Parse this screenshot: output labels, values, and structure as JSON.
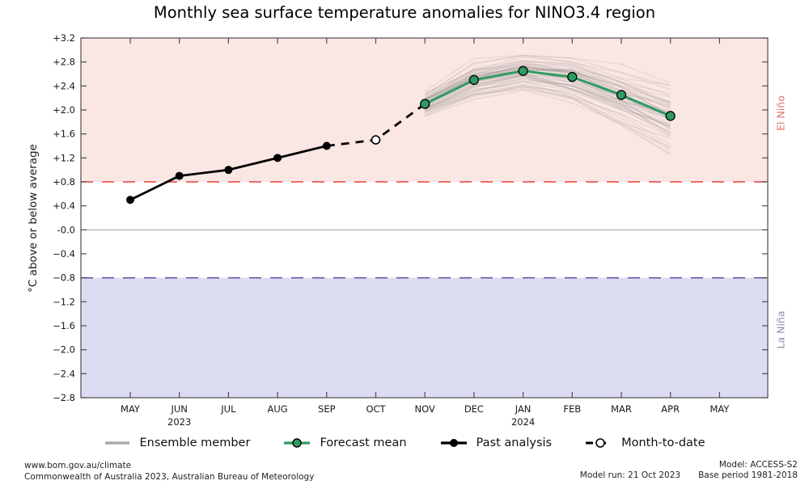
{
  "title": "Monthly sea surface temperature anomalies for NINO3.4 region",
  "ylabel": "°C above or below average",
  "right_labels": {
    "el_nino": "El Niño",
    "la_nina": "La Niña"
  },
  "legend": [
    {
      "key": "ensemble",
      "label": "Ensemble member"
    },
    {
      "key": "forecast",
      "label": "Forecast mean"
    },
    {
      "key": "past",
      "label": "Past analysis"
    },
    {
      "key": "mtd",
      "label": "Month-to-date"
    }
  ],
  "footer": {
    "left_line1": "www.bom.gov.au/climate",
    "left_line2": "Commonwealth of Australia 2023, Australian Bureau of Meteorology",
    "right_line1": "Model: ACCESS-S2",
    "right_line2a": "Model run: 21 Oct 2023",
    "right_line2b": "Base period 1981-2018"
  },
  "chart_data": {
    "type": "line",
    "x_categories": [
      "MAY",
      "JUN",
      "JUL",
      "AUG",
      "SEP",
      "OCT",
      "NOV",
      "DEC",
      "JAN",
      "FEB",
      "MAR",
      "APR",
      "MAY"
    ],
    "year_labels": [
      {
        "month_index": 1,
        "label": "2023"
      },
      {
        "month_index": 8,
        "label": "2024"
      }
    ],
    "ylim": [
      -2.8,
      3.2
    ],
    "ytick_values": [
      3.2,
      2.8,
      2.4,
      2.0,
      1.6,
      1.2,
      0.8,
      0.4,
      0.0,
      -0.4,
      -0.8,
      -1.2,
      -1.6,
      -2.0,
      -2.4,
      -2.8
    ],
    "ytick_labels": [
      "+3.2",
      "+2.8",
      "+2.4",
      "+2.0",
      "+1.6",
      "+1.2",
      "+0.8",
      "+0.4",
      "-0.0",
      "−0.4",
      "−0.8",
      "−1.2",
      "−1.6",
      "−2.0",
      "−2.4",
      "−2.8"
    ],
    "thresholds": {
      "el_nino": 0.8,
      "zero": 0.0,
      "la_nina": -0.8
    },
    "series": {
      "past_analysis": {
        "x": [
          0,
          1,
          2,
          3,
          4
        ],
        "values": [
          0.5,
          0.9,
          1.0,
          1.2,
          1.4
        ]
      },
      "month_to_date": {
        "x": [
          5
        ],
        "values": [
          1.5
        ]
      },
      "forecast_mean": {
        "x": [
          6,
          7,
          8,
          9,
          10,
          11
        ],
        "values": [
          2.1,
          2.5,
          2.65,
          2.55,
          2.25,
          1.9
        ]
      },
      "ensemble_envelope": {
        "x": [
          6,
          7,
          8,
          9,
          10,
          11
        ],
        "min": [
          1.9,
          2.2,
          2.35,
          2.1,
          1.75,
          1.3
        ],
        "max": [
          2.35,
          2.85,
          3.0,
          2.95,
          2.8,
          2.6
        ],
        "member_count": 55
      }
    },
    "colors": {
      "el_nino_band": "#fae6e3",
      "la_nina_band": "#dcdcf2",
      "el_nino_line": "#e8413b",
      "la_nina_line": "#5c5caa",
      "zero_line": "#a0a0a0",
      "frame": "#4d4d4d",
      "tick_text": "#1a1a1a",
      "ensemble": "#8a8a8a",
      "forecast": "#2e9b62",
      "past": "#000000",
      "mtd_fill": "#ffffff",
      "el_nino_text": "#e0756c",
      "la_nina_text": "#8c8cae"
    },
    "legend_position": "bottom",
    "grid": false
  }
}
